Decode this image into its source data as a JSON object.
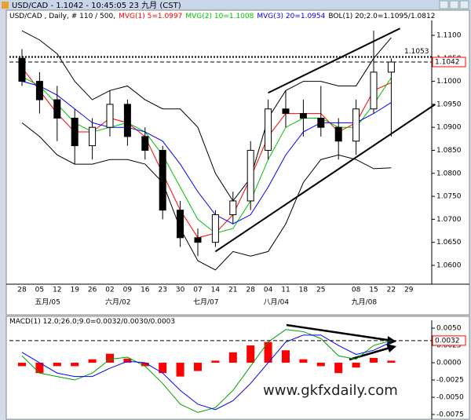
{
  "window": {
    "title": "USD/CAD - 1.1042 - 10:45:05 23 九月 (CST)"
  },
  "watermark": "www.gkfxdaily.com",
  "chart_data": [
    {
      "type": "candlestick",
      "title": "USD/CAD , Daily, # 110 / 500,",
      "categories": [
        "28",
        "05",
        "12",
        "19",
        "26",
        "02",
        "09",
        "16",
        "23",
        "30",
        "07",
        "14",
        "21",
        "28",
        "04",
        "11",
        "18",
        "25",
        null,
        "08",
        "15",
        "22",
        "29"
      ],
      "x_sublabels": [
        null,
        "五月/05",
        null,
        null,
        null,
        "六月/02",
        null,
        null,
        null,
        null,
        "七月/07",
        null,
        null,
        null,
        "八月/04",
        null,
        null,
        null,
        null,
        "九月/08",
        null,
        null,
        null
      ],
      "open": [
        1.105,
        1.1,
        1.096,
        1.092,
        1.086,
        1.09,
        1.095,
        1.088,
        1.085,
        1.072,
        1.066,
        1.065,
        1.071,
        1.074,
        1.085,
        1.094,
        1.093,
        1.092,
        1.09,
        1.087,
        1.094,
        1.102,
        null
      ],
      "high": [
        1.107,
        1.102,
        1.099,
        1.094,
        1.092,
        1.098,
        1.096,
        1.09,
        1.086,
        1.074,
        1.068,
        1.072,
        1.076,
        1.087,
        1.096,
        1.098,
        1.096,
        1.099,
        1.092,
        1.096,
        1.111,
        1.105,
        null
      ],
      "low": [
        1.099,
        1.093,
        1.087,
        1.082,
        1.083,
        1.088,
        1.086,
        1.083,
        1.07,
        1.064,
        1.062,
        1.064,
        1.069,
        1.072,
        1.083,
        1.09,
        1.088,
        1.088,
        1.083,
        1.084,
        1.093,
        1.088,
        null
      ],
      "close": [
        1.1,
        1.096,
        1.092,
        1.086,
        1.09,
        1.095,
        1.088,
        1.085,
        1.072,
        1.066,
        1.065,
        1.071,
        1.074,
        1.085,
        1.094,
        1.093,
        1.092,
        1.09,
        1.087,
        1.094,
        1.102,
        1.1042,
        null
      ],
      "up_color": "#ffffff",
      "down_color": "#000000",
      "candle_edge": "#000000",
      "series": [
        {
          "name": "MVG(1) 5=1.0997",
          "color": "#ff0000",
          "values": [
            1.103,
            1.098,
            1.093,
            1.089,
            1.089,
            1.092,
            1.091,
            1.088,
            1.08,
            1.072,
            1.066,
            1.067,
            1.071,
            1.079,
            1.088,
            1.093,
            1.093,
            1.093,
            1.089,
            1.091,
            1.098,
            1.0997,
            null
          ]
        },
        {
          "name": "MVG(2) 10=1.1008",
          "color": "#00c000",
          "values": [
            1.101,
            1.099,
            1.095,
            1.091,
            1.089,
            1.09,
            1.091,
            1.089,
            1.084,
            1.077,
            1.07,
            1.067,
            1.068,
            1.074,
            1.083,
            1.09,
            1.092,
            1.092,
            1.09,
            1.09,
            1.095,
            1.1008,
            null
          ]
        },
        {
          "name": "MVG(3) 20=1.0954",
          "color": "#0000ff",
          "values": [
            1.1,
            1.099,
            1.097,
            1.094,
            1.091,
            1.09,
            1.09,
            1.089,
            1.087,
            1.082,
            1.076,
            1.071,
            1.069,
            1.071,
            1.077,
            1.084,
            1.089,
            1.091,
            1.091,
            1.091,
            1.093,
            1.0954,
            null
          ]
        },
        {
          "name": "BOL(1) 20;2.0=1.1095/1.0812",
          "color": "#000000",
          "upper": [
            1.111,
            1.109,
            1.106,
            1.1,
            1.096,
            1.098,
            1.099,
            1.096,
            1.094,
            1.094,
            1.09,
            1.08,
            1.074,
            1.079,
            1.092,
            1.098,
            1.1,
            1.1,
            1.099,
            1.099,
            1.105,
            1.1095,
            null
          ],
          "lower": [
            1.091,
            1.088,
            1.084,
            1.082,
            1.082,
            1.083,
            1.083,
            1.082,
            1.078,
            1.068,
            1.061,
            1.059,
            1.063,
            1.062,
            1.063,
            1.069,
            1.078,
            1.083,
            1.084,
            1.083,
            1.081,
            1.0812,
            null
          ]
        }
      ],
      "trend_lines": [
        {
          "x": [
            11,
            23.5
          ],
          "y": [
            1.063,
            1.095
          ]
        },
        {
          "x": [
            14,
            21.5
          ],
          "y": [
            1.0975,
            1.1115
          ]
        }
      ],
      "reference_line": 1.1053,
      "last_value": 1.1042,
      "last_value_color": "#ff0000",
      "ylim": [
        1.0559,
        1.11256
      ],
      "yticks": [
        {
          "value": 1.06,
          "label": "1.0600"
        },
        {
          "value": 1.065,
          "label": "1.0650"
        },
        {
          "value": 1.07,
          "label": "1.0700"
        },
        {
          "value": 1.075,
          "label": "1.0750"
        },
        {
          "value": 1.08,
          "label": "1.0800"
        },
        {
          "value": 1.085,
          "label": "1.0850"
        },
        {
          "value": 1.09,
          "label": "1.0900"
        },
        {
          "value": 1.095,
          "label": "1.0950"
        },
        {
          "value": 1.1,
          "label": "1.1000"
        },
        {
          "value": 1.105,
          "label": "1.1050"
        },
        {
          "value": 1.11,
          "label": "1.1100"
        }
      ],
      "grid": false
    },
    {
      "type": "macd",
      "title": "MACD(1) 12.0;26.0;9.0=0.0032/0.0030/0.0003",
      "series": [
        {
          "color": "#ff0000",
          "style": "histogram",
          "values": [
            -0.0005,
            -0.0015,
            -0.0005,
            -0.0005,
            0.0005,
            0.0013,
            0.0006,
            -0.0005,
            -0.0015,
            -0.002,
            -0.0012,
            0.0003,
            0.0015,
            0.0025,
            0.003,
            0.0018,
            0.0005,
            -0.0005,
            -0.0015,
            -0.0007,
            0.0007,
            0.0003,
            null
          ]
        },
        {
          "color": "#00a000",
          "style": "line",
          "values": [
            0.001,
            -0.0015,
            -0.002,
            -0.0025,
            -0.0015,
            0.0005,
            0.0008,
            -0.0005,
            -0.003,
            -0.006,
            -0.0072,
            -0.0065,
            -0.004,
            -0.0005,
            0.003,
            0.0048,
            0.0045,
            0.0035,
            0.001,
            0.0005,
            0.0025,
            0.0032,
            null
          ]
        },
        {
          "color": "#0000ff",
          "style": "line",
          "values": [
            0.0015,
            0.0,
            -0.0015,
            -0.002,
            -0.002,
            -0.0008,
            0.0002,
            0.0,
            -0.0015,
            -0.004,
            -0.006,
            -0.0068,
            -0.0055,
            -0.003,
            0.0,
            0.003,
            0.004,
            0.004,
            0.0025,
            0.0012,
            0.0018,
            0.003,
            null
          ]
        }
      ],
      "last_value": 0.0032,
      "last_value_color": "#ff0000",
      "ylim": [
        -0.00795,
        0.00614
      ],
      "yticks": [
        {
          "value": 0.005,
          "label": "0.0050"
        },
        {
          "value": 0.0025,
          "label": "0.0025"
        },
        {
          "value": 0,
          "label": "0.0000"
        },
        {
          "value": -0.0025,
          "label": "-0.0025"
        },
        {
          "value": -0.005,
          "label": "-0.0050"
        },
        {
          "value": -0.0075,
          "label": "-0.0075"
        }
      ],
      "grid": false
    }
  ]
}
